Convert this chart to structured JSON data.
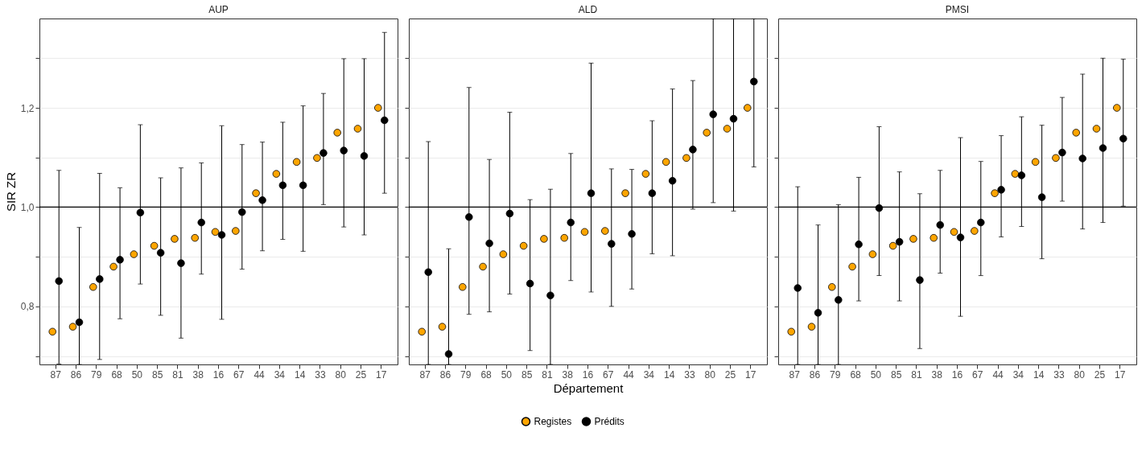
{
  "chart_data": [
    {
      "type": "scatter",
      "title": "AUP",
      "ylabel": "SIR ZR",
      "categories": [
        "87",
        "86",
        "79",
        "68",
        "50",
        "85",
        "81",
        "38",
        "16",
        "67",
        "44",
        "34",
        "14",
        "33",
        "80",
        "25",
        "17"
      ],
      "series": [
        {
          "name": "Registes",
          "color": "#ffa500",
          "values": [
            0.749,
            0.759,
            0.839,
            0.88,
            0.905,
            0.922,
            0.936,
            0.938,
            0.95,
            0.952,
            1.028,
            1.067,
            1.091,
            1.099,
            1.15,
            1.158,
            1.2
          ]
        },
        {
          "name": "Prédits",
          "color": "#000000",
          "values": [
            0.851,
            0.768,
            0.855,
            0.894,
            0.989,
            0.908,
            0.887,
            0.969,
            0.944,
            0.99,
            1.014,
            1.044,
            1.044,
            1.109,
            1.114,
            1.103,
            1.175
          ],
          "errors": [
            [
              0.684,
              1.074
            ],
            [
              0.683,
              0.959
            ],
            [
              0.693,
              1.068
            ],
            [
              0.775,
              1.039
            ],
            [
              0.845,
              1.166
            ],
            [
              0.782,
              1.059
            ],
            [
              0.736,
              1.079
            ],
            [
              0.865,
              1.089
            ],
            [
              0.774,
              1.164
            ],
            [
              0.875,
              1.126
            ],
            [
              0.912,
              1.131
            ],
            [
              0.935,
              1.171
            ],
            [
              0.911,
              1.204
            ],
            [
              1.005,
              1.229
            ],
            [
              0.96,
              1.299
            ],
            [
              0.944,
              1.299
            ],
            [
              1.028,
              1.352
            ]
          ]
        }
      ],
      "ylim": [
        0.683,
        1.38
      ],
      "yticks": [
        {
          "value": 0.7,
          "label": null
        },
        {
          "value": 0.8,
          "label": "0,8"
        },
        {
          "value": 0.9,
          "label": null
        },
        {
          "value": 1.0,
          "label": "1,0"
        },
        {
          "value": 1.1,
          "label": null
        },
        {
          "value": 1.2,
          "label": "1,2"
        },
        {
          "value": 1.3,
          "label": null
        }
      ],
      "grid": "y",
      "ref_lines": [
        {
          "axis": "y",
          "value": 1.0,
          "color": "#000000"
        }
      ],
      "legend": "bottom",
      "marker": "circle"
    },
    {
      "type": "scatter",
      "title": "ALD",
      "xlabel": "Département",
      "categories": [
        "87",
        "86",
        "79",
        "68",
        "50",
        "85",
        "81",
        "38",
        "16",
        "67",
        "44",
        "34",
        "14",
        "33",
        "80",
        "25",
        "17"
      ],
      "series": [
        {
          "name": "Registes",
          "color": "#ffa500",
          "values": [
            0.749,
            0.759,
            0.839,
            0.88,
            0.905,
            0.922,
            0.936,
            0.938,
            0.95,
            0.952,
            1.028,
            1.067,
            1.091,
            1.099,
            1.15,
            1.158,
            1.2
          ]
        },
        {
          "name": "Prédits",
          "color": "#000000",
          "values": [
            0.869,
            0.704,
            0.98,
            0.927,
            0.987,
            0.846,
            0.822,
            0.969,
            1.028,
            0.926,
            0.946,
            1.028,
            1.053,
            1.116,
            1.187,
            1.178,
            1.253
          ],
          "errors": [
            [
              0.683,
              1.132
            ],
            [
              0.683,
              0.916
            ],
            [
              0.784,
              1.241
            ],
            [
              0.789,
              1.096
            ],
            [
              0.825,
              1.191
            ],
            [
              0.711,
              1.015
            ],
            [
              0.683,
              1.036
            ],
            [
              0.852,
              1.108
            ],
            [
              0.829,
              1.29
            ],
            [
              0.8,
              1.077
            ],
            [
              0.835,
              1.076
            ],
            [
              0.906,
              1.174
            ],
            [
              0.902,
              1.238
            ],
            [
              0.996,
              1.255
            ],
            [
              1.009,
              1.38
            ],
            [
              0.992,
              1.38
            ],
            [
              1.081,
              1.38
            ]
          ]
        }
      ],
      "ylim": [
        0.683,
        1.38
      ],
      "yticks": [
        {
          "value": 0.7,
          "label": null
        },
        {
          "value": 0.8,
          "label": null
        },
        {
          "value": 0.9,
          "label": null
        },
        {
          "value": 1.0,
          "label": null
        },
        {
          "value": 1.1,
          "label": null
        },
        {
          "value": 1.2,
          "label": null
        },
        {
          "value": 1.3,
          "label": null
        }
      ],
      "tick_labels": "x",
      "grid": "y",
      "ref_lines": [
        {
          "axis": "y",
          "value": 1.0,
          "color": "#000000"
        }
      ],
      "legend": "bottom",
      "marker": "circle"
    },
    {
      "type": "scatter",
      "title": "PMSI",
      "categories": [
        "87",
        "86",
        "79",
        "68",
        "50",
        "85",
        "81",
        "38",
        "16",
        "67",
        "44",
        "34",
        "14",
        "33",
        "80",
        "25",
        "17"
      ],
      "series": [
        {
          "name": "Registes",
          "color": "#ffa500",
          "values": [
            0.749,
            0.759,
            0.839,
            0.88,
            0.905,
            0.922,
            0.936,
            0.938,
            0.95,
            0.952,
            1.028,
            1.067,
            1.091,
            1.099,
            1.15,
            1.158,
            1.2
          ]
        },
        {
          "name": "Prédits",
          "color": "#000000",
          "values": [
            0.837,
            0.787,
            0.813,
            0.925,
            0.998,
            0.93,
            0.853,
            0.964,
            0.939,
            0.969,
            1.035,
            1.064,
            1.02,
            1.11,
            1.098,
            1.119,
            1.138
          ],
          "errors": [
            [
              0.683,
              1.041
            ],
            [
              0.683,
              0.964
            ],
            [
              0.683,
              1.005
            ],
            [
              0.811,
              1.06
            ],
            [
              0.862,
              1.162
            ],
            [
              0.811,
              1.071
            ],
            [
              0.715,
              1.027
            ],
            [
              0.867,
              1.074
            ],
            [
              0.78,
              1.14
            ],
            [
              0.862,
              1.092
            ],
            [
              0.94,
              1.144
            ],
            [
              0.961,
              1.182
            ],
            [
              0.896,
              1.165
            ],
            [
              1.012,
              1.221
            ],
            [
              0.956,
              1.268
            ],
            [
              0.969,
              1.3
            ],
            [
              1.002,
              1.298
            ]
          ]
        }
      ],
      "ylim": [
        0.683,
        1.38
      ],
      "yticks": [
        {
          "value": 0.7,
          "label": null
        },
        {
          "value": 0.8,
          "label": null
        },
        {
          "value": 0.9,
          "label": null
        },
        {
          "value": 1.0,
          "label": null
        },
        {
          "value": 1.1,
          "label": null
        },
        {
          "value": 1.2,
          "label": null
        },
        {
          "value": 1.3,
          "label": null
        }
      ],
      "tick_labels": "x",
      "grid": "y",
      "ref_lines": [
        {
          "axis": "y",
          "value": 1.0,
          "color": "#000000"
        }
      ],
      "legend": "bottom",
      "marker": "circle"
    }
  ]
}
